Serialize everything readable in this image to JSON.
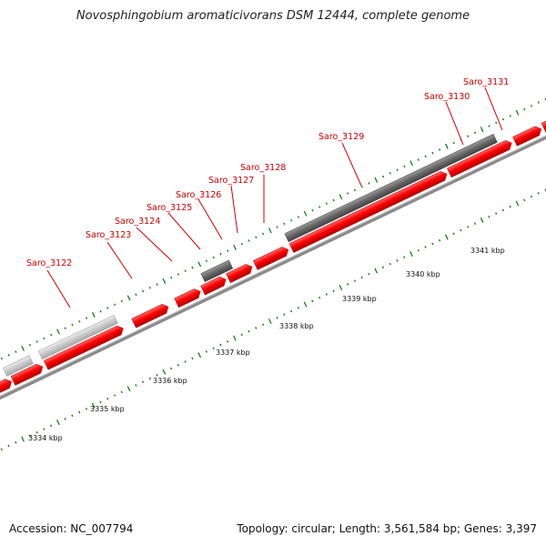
{
  "title": "Novosphingobium aromaticivorans DSM 12444, complete genome",
  "footer": {
    "accession": "Accession: NC_007794",
    "summary": "Topology: circular; Length: 3,561,584 bp; Genes: 3,397"
  },
  "colors": {
    "forward_gene": "#ff0000",
    "gene_outline": "#cc0000",
    "dark_feature": "#666666",
    "light_feature": "#c8c8c8",
    "tick": "#1a7a1a",
    "label": "#cc0000",
    "backbone": "#9a9a9a"
  },
  "gene_labels": [
    "Saro_3122",
    "Saro_3123",
    "Saro_3124",
    "Saro_3125",
    "Saro_3126",
    "Saro_3127",
    "Saro_3128",
    "Saro_3129",
    "Saro_3130",
    "Saro_3131"
  ],
  "kbp_labels": [
    "3334 kbp",
    "3335 kbp",
    "3336 kbp",
    "3337 kbp",
    "3338 kbp",
    "3339 kbp",
    "3340 kbp",
    "3341 kbp"
  ]
}
